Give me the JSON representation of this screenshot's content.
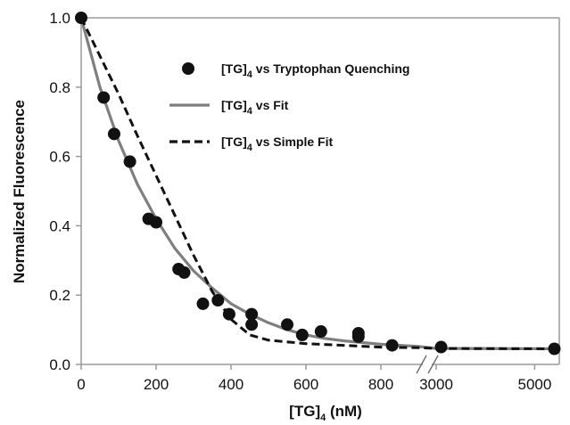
{
  "chart_data": {
    "type": "scatter",
    "xlabel": {
      "main": "[TG]",
      "sub": "4",
      "unit": " (nM)"
    },
    "ylabel": "Normalized Fluorescence",
    "x_axis_break": {
      "between": [
        900,
        3000
      ]
    },
    "x_ticks": [
      "0",
      "200",
      "400",
      "600",
      "800",
      "3000",
      "5000"
    ],
    "y_ticks": [
      "0.0",
      "0.2",
      "0.4",
      "0.6",
      "0.8",
      "1.0"
    ],
    "ylim": [
      0,
      1
    ],
    "grid": false,
    "legend_position": "top-right",
    "series": [
      {
        "name": {
          "main": "[TG]",
          "sub": "4",
          "rest": " vs Tryptophan Quenching"
        },
        "kind": "points",
        "color": "#111111",
        "points": [
          [
            0,
            1.0
          ],
          [
            60,
            0.77
          ],
          [
            88,
            0.665
          ],
          [
            130,
            0.585
          ],
          [
            180,
            0.42
          ],
          [
            200,
            0.41
          ],
          [
            260,
            0.275
          ],
          [
            275,
            0.265
          ],
          [
            325,
            0.175
          ],
          [
            365,
            0.185
          ],
          [
            395,
            0.145
          ],
          [
            455,
            0.145
          ],
          [
            455,
            0.115
          ],
          [
            550,
            0.115
          ],
          [
            590,
            0.085
          ],
          [
            640,
            0.095
          ],
          [
            740,
            0.09
          ],
          [
            740,
            0.08
          ],
          [
            830,
            0.055
          ],
          [
            3100,
            0.05
          ],
          [
            5400,
            0.045
          ]
        ]
      },
      {
        "name": {
          "main": "[TG]",
          "sub": "4",
          "rest": " vs Fit"
        },
        "kind": "line",
        "style": "solid",
        "color": "#7f7f7f",
        "points": [
          [
            0,
            1.0
          ],
          [
            50,
            0.8
          ],
          [
            100,
            0.645
          ],
          [
            150,
            0.52
          ],
          [
            200,
            0.42
          ],
          [
            250,
            0.335
          ],
          [
            300,
            0.27
          ],
          [
            350,
            0.22
          ],
          [
            400,
            0.175
          ],
          [
            450,
            0.145
          ],
          [
            500,
            0.12
          ],
          [
            550,
            0.1
          ],
          [
            600,
            0.085
          ],
          [
            650,
            0.075
          ],
          [
            700,
            0.068
          ],
          [
            800,
            0.058
          ],
          [
            900,
            0.052
          ],
          [
            3000,
            0.046
          ],
          [
            5500,
            0.045
          ]
        ]
      },
      {
        "name": {
          "main": "[TG]",
          "sub": "4",
          "rest": " vs Simple Fit"
        },
        "kind": "line",
        "style": "dashed",
        "color": "#111111",
        "points": [
          [
            0,
            1.0
          ],
          [
            50,
            0.89
          ],
          [
            100,
            0.78
          ],
          [
            150,
            0.66
          ],
          [
            200,
            0.545
          ],
          [
            250,
            0.43
          ],
          [
            300,
            0.315
          ],
          [
            350,
            0.21
          ],
          [
            400,
            0.13
          ],
          [
            450,
            0.085
          ],
          [
            500,
            0.07
          ],
          [
            600,
            0.06
          ],
          [
            700,
            0.055
          ],
          [
            800,
            0.05
          ],
          [
            900,
            0.048
          ],
          [
            3000,
            0.046
          ],
          [
            5500,
            0.045
          ]
        ]
      }
    ]
  }
}
